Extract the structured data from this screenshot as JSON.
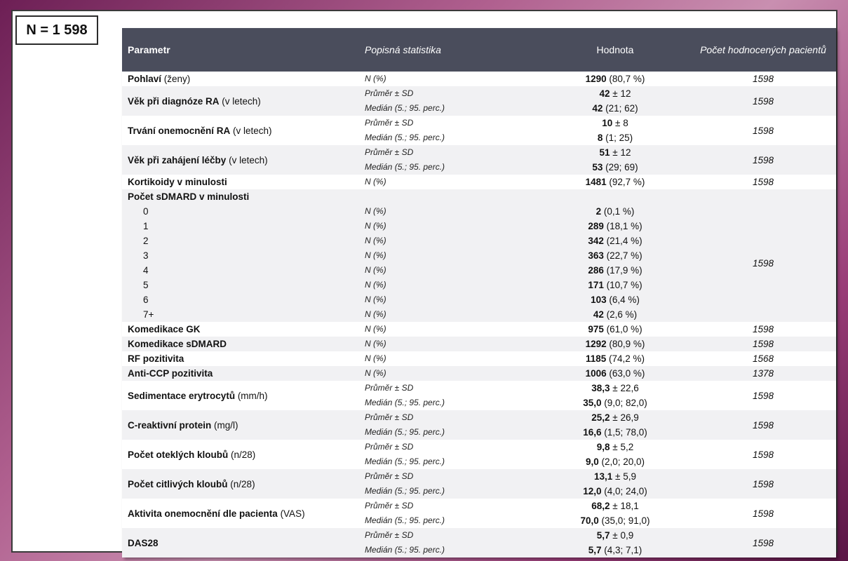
{
  "badge": "N = 1 598",
  "headers": {
    "param": "Parametr",
    "stat": "Popisná statistika",
    "value": "Hodnota",
    "count": "Počet hodnocených pacientů"
  },
  "rows": [
    {
      "name": "Pohlaví",
      "unit": " (ženy)",
      "stats": [
        "N (%)"
      ],
      "values": [
        [
          "1290",
          " (80,7 %)"
        ]
      ],
      "count": "1598"
    },
    {
      "name": "Věk při diagnóze RA",
      "unit": " (v letech)",
      "stats": [
        "Průměr ± SD",
        "Medián (5.; 95. perc.)"
      ],
      "values": [
        [
          "42",
          " ± 12"
        ],
        [
          "42",
          " (21; 62)"
        ]
      ],
      "count": "1598"
    },
    {
      "name": "Trvání onemocnění RA",
      "unit": " (v letech)",
      "stats": [
        "Průměr ± SD",
        "Medián (5.; 95. perc.)"
      ],
      "values": [
        [
          "10",
          " ± 8"
        ],
        [
          "8",
          " (1; 25)"
        ]
      ],
      "count": "1598"
    },
    {
      "name": "Věk při zahájení léčby",
      "unit": " (v letech)",
      "stats": [
        "Průměr ± SD",
        "Medián (5.; 95. perc.)"
      ],
      "values": [
        [
          "51",
          " ± 12"
        ],
        [
          "53",
          " (29; 69)"
        ]
      ],
      "count": "1598"
    },
    {
      "name": "Kortikoidy v minulosti",
      "unit": "",
      "stats": [
        "N (%)"
      ],
      "values": [
        [
          "1481",
          " (92,7 %)"
        ]
      ],
      "count": "1598"
    }
  ],
  "sdmard": {
    "name": "Počet sDMARD v minulosti",
    "count": "1598",
    "items": [
      {
        "label": "0",
        "stat": "N (%)",
        "v": "2",
        "r": " (0,1 %)"
      },
      {
        "label": "1",
        "stat": "N (%)",
        "v": "289",
        "r": " (18,1 %)"
      },
      {
        "label": "2",
        "stat": "N (%)",
        "v": "342",
        "r": " (21,4 %)"
      },
      {
        "label": "3",
        "stat": "N (%)",
        "v": "363",
        "r": " (22,7 %)"
      },
      {
        "label": "4",
        "stat": "N (%)",
        "v": "286",
        "r": " (17,9 %)"
      },
      {
        "label": "5",
        "stat": "N (%)",
        "v": "171",
        "r": " (10,7 %)"
      },
      {
        "label": "6",
        "stat": "N (%)",
        "v": "103",
        "r": " (6,4 %)"
      },
      {
        "label": "7+",
        "stat": "N (%)",
        "v": "42",
        "r": " (2,6 %)"
      }
    ]
  },
  "rows2": [
    {
      "name": "Komedikace GK",
      "unit": "",
      "stats": [
        "N (%)"
      ],
      "values": [
        [
          "975",
          " (61,0 %)"
        ]
      ],
      "count": "1598"
    },
    {
      "name": "Komedikace sDMARD",
      "unit": "",
      "stats": [
        "N (%)"
      ],
      "values": [
        [
          "1292",
          " (80,9 %)"
        ]
      ],
      "count": "1598"
    },
    {
      "name": "RF pozitivita",
      "unit": "",
      "stats": [
        "N (%)"
      ],
      "values": [
        [
          "1185",
          " (74,2 %)"
        ]
      ],
      "count": "1568"
    },
    {
      "name": "Anti-CCP pozitivita",
      "unit": "",
      "stats": [
        "N (%)"
      ],
      "values": [
        [
          "1006",
          " (63,0 %)"
        ]
      ],
      "count": "1378"
    },
    {
      "name": "Sedimentace erytrocytů",
      "unit": " (mm/h)",
      "stats": [
        "Průměr ± SD",
        "Medián (5.; 95. perc.)"
      ],
      "values": [
        [
          "38,3",
          " ± 22,6"
        ],
        [
          "35,0",
          " (9,0; 82,0)"
        ]
      ],
      "count": "1598"
    },
    {
      "name": "C-reaktivní protein",
      "unit": " (mg/l)",
      "stats": [
        "Průměr ± SD",
        "Medián (5.; 95. perc.)"
      ],
      "values": [
        [
          "25,2",
          " ± 26,9"
        ],
        [
          "16,6",
          " (1,5; 78,0)"
        ]
      ],
      "count": "1598"
    },
    {
      "name": "Počet oteklých kloubů",
      "unit": " (n/28)",
      "stats": [
        "Průměr ± SD",
        "Medián (5.; 95. perc.)"
      ],
      "values": [
        [
          "9,8",
          " ± 5,2"
        ],
        [
          "9,0",
          " (2,0; 20,0)"
        ]
      ],
      "count": "1598"
    },
    {
      "name": "Počet citlivých kloubů",
      "unit": " (n/28)",
      "stats": [
        "Průměr ± SD",
        "Medián (5.; 95. perc.)"
      ],
      "values": [
        [
          "13,1",
          " ± 5,9"
        ],
        [
          "12,0",
          " (4,0; 24,0)"
        ]
      ],
      "count": "1598"
    },
    {
      "name": "Aktivita onemocnění dle pacienta",
      "unit": " (VAS)",
      "stats": [
        "Průměr ± SD",
        "Medián (5.; 95. perc.)"
      ],
      "values": [
        [
          "68,2",
          " ± 18,1"
        ],
        [
          "70,0",
          " (35,0; 91,0)"
        ]
      ],
      "count": "1598"
    },
    {
      "name": "DAS28",
      "unit": "",
      "stats": [
        "Průměr ± SD",
        "Medián (5.; 95. perc.)"
      ],
      "values": [
        [
          "5,7",
          " ± 0,9"
        ],
        [
          "5,7",
          " (4,3; 7,1)"
        ]
      ],
      "count": "1598"
    }
  ]
}
